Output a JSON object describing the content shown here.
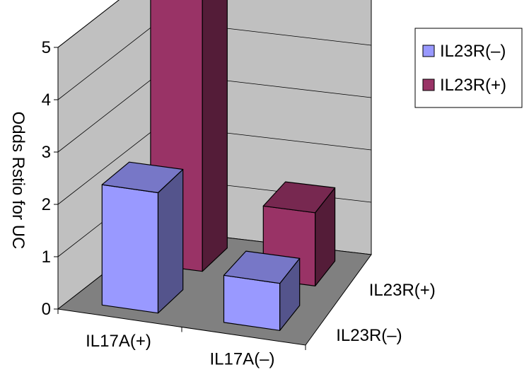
{
  "chart_data": {
    "type": "bar",
    "variant": "3d-clustered-depth",
    "title": "",
    "ylabel": "Odds Rstio for UC",
    "xlabel": "",
    "ylim": [
      0,
      5
    ],
    "yticks": [
      "0",
      "1",
      "2",
      "3",
      "4",
      "5"
    ],
    "grid": true,
    "legend_position": "right",
    "categories": [
      "IL17A(+)",
      "IL17A(–)"
    ],
    "depth_labels": [
      "IL23R(+)",
      "IL23R(–)"
    ],
    "series": [
      {
        "name": "IL23R(–)",
        "color": "#9999FF",
        "values": [
          2.3,
          0.9
        ]
      },
      {
        "name": "IL23R(+)",
        "color": "#993366",
        "values": [
          5.3,
          1.4
        ]
      }
    ],
    "colors": {
      "wall": "#C0C0C0",
      "floor": "#808080",
      "grid": "#000000"
    }
  }
}
